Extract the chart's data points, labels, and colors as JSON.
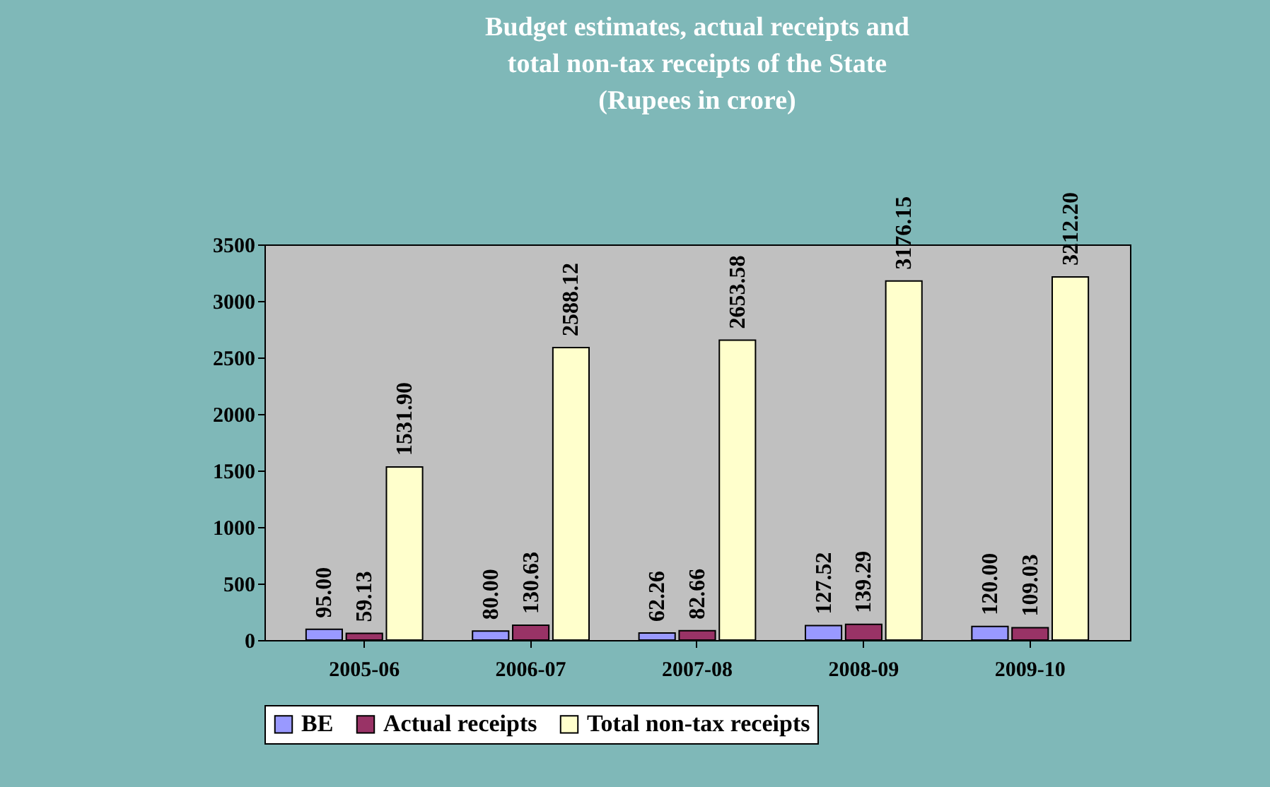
{
  "chart_data": {
    "type": "bar",
    "title": [
      "Budget estimates, actual receipts and",
      "total non-tax receipts of the State",
      "(Rupees in crore)"
    ],
    "categories": [
      "2005-06",
      "2006-07",
      "2007-08",
      "2008-09",
      "2009-10"
    ],
    "series": [
      {
        "name": "BE",
        "color": "#9999ff",
        "values": [
          95.0,
          80.0,
          62.26,
          127.52,
          120.0
        ],
        "value_labels": [
          "95.00",
          "80.00",
          "62.26",
          "127.52",
          "120.00"
        ]
      },
      {
        "name": "Actual receipts",
        "color": "#993366",
        "values": [
          59.13,
          130.63,
          82.66,
          139.29,
          109.03
        ],
        "value_labels": [
          "59.13",
          "130.63",
          "82.66",
          "139.29",
          "109.03"
        ]
      },
      {
        "name": "Total non-tax receipts",
        "color": "#ffffcc",
        "values": [
          1531.9,
          2588.12,
          2653.58,
          3176.15,
          3212.2
        ],
        "value_labels": [
          "1531.90",
          "2588.12",
          "2653.58",
          "3176.15",
          "3212.20"
        ]
      }
    ],
    "ylim": [
      0,
      3500
    ],
    "yticks": [
      0,
      500,
      1000,
      1500,
      2000,
      2500,
      3000,
      3500
    ],
    "grid": false,
    "legend": "bottom"
  }
}
